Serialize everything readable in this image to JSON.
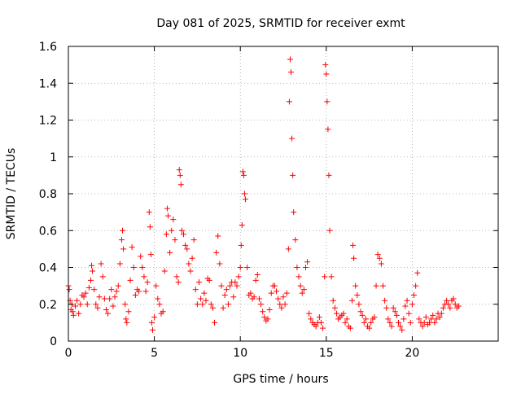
{
  "chart_data": {
    "type": "scatter",
    "title": "Day 081 of 2025, SRMTID for receiver exmt",
    "xlabel": "GPS time / hours",
    "ylabel": "SRMTID / TECUs",
    "xlim": [
      0,
      25
    ],
    "ylim": [
      0,
      1.6
    ],
    "x_ticks": [
      0,
      5,
      10,
      15,
      20
    ],
    "x_tick_labels": [
      "0",
      "5",
      "10",
      "15",
      "20"
    ],
    "y_ticks": [
      0,
      0.2,
      0.4,
      0.6,
      0.8,
      1.0,
      1.2,
      1.4,
      1.6
    ],
    "y_tick_labels": [
      "0",
      "0.2",
      "0.4",
      "0.6",
      "0.8",
      "1",
      "1.2",
      "1.4",
      "1.6"
    ],
    "grid": true,
    "marker": "plus",
    "marker_color": "#ff0000",
    "series": [
      {
        "name": "SRMTID",
        "points": [
          [
            0.0,
            0.3
          ],
          [
            0.05,
            0.28
          ],
          [
            0.1,
            0.22
          ],
          [
            0.15,
            0.17
          ],
          [
            0.2,
            0.2
          ],
          [
            0.25,
            0.16
          ],
          [
            0.3,
            0.14
          ],
          [
            0.4,
            0.19
          ],
          [
            0.5,
            0.22
          ],
          [
            0.6,
            0.15
          ],
          [
            0.7,
            0.2
          ],
          [
            0.8,
            0.25
          ],
          [
            0.9,
            0.24
          ],
          [
            1.0,
            0.26
          ],
          [
            1.1,
            0.2
          ],
          [
            1.2,
            0.29
          ],
          [
            1.3,
            0.33
          ],
          [
            1.35,
            0.41
          ],
          [
            1.4,
            0.38
          ],
          [
            1.5,
            0.28
          ],
          [
            1.6,
            0.2
          ],
          [
            1.7,
            0.18
          ],
          [
            1.8,
            0.24
          ],
          [
            1.9,
            0.42
          ],
          [
            2.0,
            0.35
          ],
          [
            2.1,
            0.23
          ],
          [
            2.2,
            0.17
          ],
          [
            2.3,
            0.15
          ],
          [
            2.4,
            0.23
          ],
          [
            2.5,
            0.28
          ],
          [
            2.6,
            0.19
          ],
          [
            2.7,
            0.24
          ],
          [
            2.8,
            0.27
          ],
          [
            2.9,
            0.3
          ],
          [
            3.0,
            0.42
          ],
          [
            3.1,
            0.55
          ],
          [
            3.15,
            0.6
          ],
          [
            3.2,
            0.5
          ],
          [
            3.3,
            0.2
          ],
          [
            3.35,
            0.12
          ],
          [
            3.4,
            0.1
          ],
          [
            3.5,
            0.16
          ],
          [
            3.6,
            0.33
          ],
          [
            3.7,
            0.51
          ],
          [
            3.8,
            0.4
          ],
          [
            3.9,
            0.25
          ],
          [
            4.0,
            0.28
          ],
          [
            4.1,
            0.27
          ],
          [
            4.2,
            0.46
          ],
          [
            4.3,
            0.4
          ],
          [
            4.4,
            0.35
          ],
          [
            4.5,
            0.27
          ],
          [
            4.6,
            0.32
          ],
          [
            4.7,
            0.7
          ],
          [
            4.75,
            0.62
          ],
          [
            4.8,
            0.47
          ],
          [
            4.85,
            0.1
          ],
          [
            4.9,
            0.06
          ],
          [
            5.0,
            0.13
          ],
          [
            5.1,
            0.3
          ],
          [
            5.2,
            0.23
          ],
          [
            5.3,
            0.2
          ],
          [
            5.4,
            0.15
          ],
          [
            5.5,
            0.16
          ],
          [
            5.6,
            0.38
          ],
          [
            5.7,
            0.58
          ],
          [
            5.75,
            0.72
          ],
          [
            5.8,
            0.68
          ],
          [
            5.9,
            0.48
          ],
          [
            6.0,
            0.6
          ],
          [
            6.1,
            0.66
          ],
          [
            6.2,
            0.55
          ],
          [
            6.3,
            0.35
          ],
          [
            6.4,
            0.32
          ],
          [
            6.45,
            0.93
          ],
          [
            6.5,
            0.9
          ],
          [
            6.55,
            0.85
          ],
          [
            6.6,
            0.6
          ],
          [
            6.7,
            0.58
          ],
          [
            6.8,
            0.52
          ],
          [
            6.9,
            0.5
          ],
          [
            7.0,
            0.42
          ],
          [
            7.1,
            0.38
          ],
          [
            7.2,
            0.45
          ],
          [
            7.3,
            0.55
          ],
          [
            7.4,
            0.28
          ],
          [
            7.5,
            0.2
          ],
          [
            7.6,
            0.32
          ],
          [
            7.7,
            0.23
          ],
          [
            7.8,
            0.2
          ],
          [
            7.9,
            0.26
          ],
          [
            8.0,
            0.22
          ],
          [
            8.1,
            0.34
          ],
          [
            8.2,
            0.33
          ],
          [
            8.3,
            0.2
          ],
          [
            8.4,
            0.18
          ],
          [
            8.5,
            0.1
          ],
          [
            8.6,
            0.48
          ],
          [
            8.7,
            0.57
          ],
          [
            8.8,
            0.42
          ],
          [
            8.9,
            0.3
          ],
          [
            9.0,
            0.18
          ],
          [
            9.1,
            0.25
          ],
          [
            9.2,
            0.28
          ],
          [
            9.3,
            0.2
          ],
          [
            9.4,
            0.3
          ],
          [
            9.5,
            0.32
          ],
          [
            9.6,
            0.24
          ],
          [
            9.7,
            0.32
          ],
          [
            9.8,
            0.3
          ],
          [
            9.9,
            0.35
          ],
          [
            10.0,
            0.4
          ],
          [
            10.05,
            0.52
          ],
          [
            10.1,
            0.63
          ],
          [
            10.15,
            0.92
          ],
          [
            10.2,
            0.9
          ],
          [
            10.25,
            0.8
          ],
          [
            10.3,
            0.77
          ],
          [
            10.4,
            0.4
          ],
          [
            10.5,
            0.25
          ],
          [
            10.6,
            0.26
          ],
          [
            10.7,
            0.23
          ],
          [
            10.8,
            0.24
          ],
          [
            10.9,
            0.33
          ],
          [
            11.0,
            0.36
          ],
          [
            11.1,
            0.23
          ],
          [
            11.2,
            0.2
          ],
          [
            11.3,
            0.16
          ],
          [
            11.4,
            0.13
          ],
          [
            11.5,
            0.11
          ],
          [
            11.6,
            0.12
          ],
          [
            11.7,
            0.17
          ],
          [
            11.8,
            0.26
          ],
          [
            11.9,
            0.3
          ],
          [
            12.0,
            0.3
          ],
          [
            12.1,
            0.27
          ],
          [
            12.2,
            0.23
          ],
          [
            12.3,
            0.2
          ],
          [
            12.4,
            0.18
          ],
          [
            12.5,
            0.24
          ],
          [
            12.6,
            0.2
          ],
          [
            12.7,
            0.26
          ],
          [
            12.8,
            0.5
          ],
          [
            12.85,
            1.3
          ],
          [
            12.9,
            1.53
          ],
          [
            12.95,
            1.46
          ],
          [
            13.0,
            1.1
          ],
          [
            13.05,
            0.9
          ],
          [
            13.1,
            0.7
          ],
          [
            13.2,
            0.55
          ],
          [
            13.3,
            0.4
          ],
          [
            13.4,
            0.35
          ],
          [
            13.5,
            0.3
          ],
          [
            13.6,
            0.26
          ],
          [
            13.7,
            0.28
          ],
          [
            13.8,
            0.4
          ],
          [
            13.9,
            0.43
          ],
          [
            14.0,
            0.15
          ],
          [
            14.1,
            0.12
          ],
          [
            14.2,
            0.1
          ],
          [
            14.3,
            0.09
          ],
          [
            14.4,
            0.08
          ],
          [
            14.5,
            0.1
          ],
          [
            14.6,
            0.13
          ],
          [
            14.7,
            0.1
          ],
          [
            14.8,
            0.07
          ],
          [
            14.9,
            0.35
          ],
          [
            14.95,
            1.5
          ],
          [
            15.0,
            1.45
          ],
          [
            15.05,
            1.3
          ],
          [
            15.1,
            1.15
          ],
          [
            15.15,
            0.9
          ],
          [
            15.2,
            0.6
          ],
          [
            15.3,
            0.35
          ],
          [
            15.4,
            0.22
          ],
          [
            15.5,
            0.18
          ],
          [
            15.6,
            0.15
          ],
          [
            15.7,
            0.12
          ],
          [
            15.8,
            0.13
          ],
          [
            15.9,
            0.14
          ],
          [
            16.0,
            0.15
          ],
          [
            16.1,
            0.1
          ],
          [
            16.2,
            0.12
          ],
          [
            16.3,
            0.08
          ],
          [
            16.4,
            0.07
          ],
          [
            16.5,
            0.22
          ],
          [
            16.55,
            0.52
          ],
          [
            16.6,
            0.45
          ],
          [
            16.7,
            0.3
          ],
          [
            16.8,
            0.25
          ],
          [
            16.9,
            0.2
          ],
          [
            17.0,
            0.16
          ],
          [
            17.1,
            0.14
          ],
          [
            17.2,
            0.1
          ],
          [
            17.3,
            0.12
          ],
          [
            17.4,
            0.08
          ],
          [
            17.5,
            0.07
          ],
          [
            17.6,
            0.1
          ],
          [
            17.7,
            0.12
          ],
          [
            17.8,
            0.13
          ],
          [
            17.9,
            0.3
          ],
          [
            18.0,
            0.47
          ],
          [
            18.1,
            0.45
          ],
          [
            18.2,
            0.42
          ],
          [
            18.3,
            0.3
          ],
          [
            18.4,
            0.22
          ],
          [
            18.5,
            0.18
          ],
          [
            18.6,
            0.12
          ],
          [
            18.7,
            0.1
          ],
          [
            18.8,
            0.08
          ],
          [
            18.9,
            0.18
          ],
          [
            19.0,
            0.16
          ],
          [
            19.1,
            0.14
          ],
          [
            19.2,
            0.1
          ],
          [
            19.3,
            0.08
          ],
          [
            19.4,
            0.06
          ],
          [
            19.5,
            0.12
          ],
          [
            19.6,
            0.19
          ],
          [
            19.7,
            0.22
          ],
          [
            19.8,
            0.15
          ],
          [
            19.9,
            0.1
          ],
          [
            20.0,
            0.2
          ],
          [
            20.1,
            0.25
          ],
          [
            20.2,
            0.3
          ],
          [
            20.3,
            0.37
          ],
          [
            20.4,
            0.12
          ],
          [
            20.5,
            0.1
          ],
          [
            20.6,
            0.08
          ],
          [
            20.7,
            0.1
          ],
          [
            20.8,
            0.13
          ],
          [
            20.9,
            0.09
          ],
          [
            21.0,
            0.1
          ],
          [
            21.1,
            0.12
          ],
          [
            21.2,
            0.14
          ],
          [
            21.3,
            0.1
          ],
          [
            21.4,
            0.12
          ],
          [
            21.5,
            0.15
          ],
          [
            21.6,
            0.13
          ],
          [
            21.7,
            0.15
          ],
          [
            21.8,
            0.18
          ],
          [
            21.9,
            0.2
          ],
          [
            22.0,
            0.22
          ],
          [
            22.1,
            0.2
          ],
          [
            22.2,
            0.18
          ],
          [
            22.3,
            0.22
          ],
          [
            22.4,
            0.23
          ],
          [
            22.5,
            0.2
          ],
          [
            22.6,
            0.18
          ],
          [
            22.7,
            0.19
          ]
        ]
      }
    ]
  }
}
